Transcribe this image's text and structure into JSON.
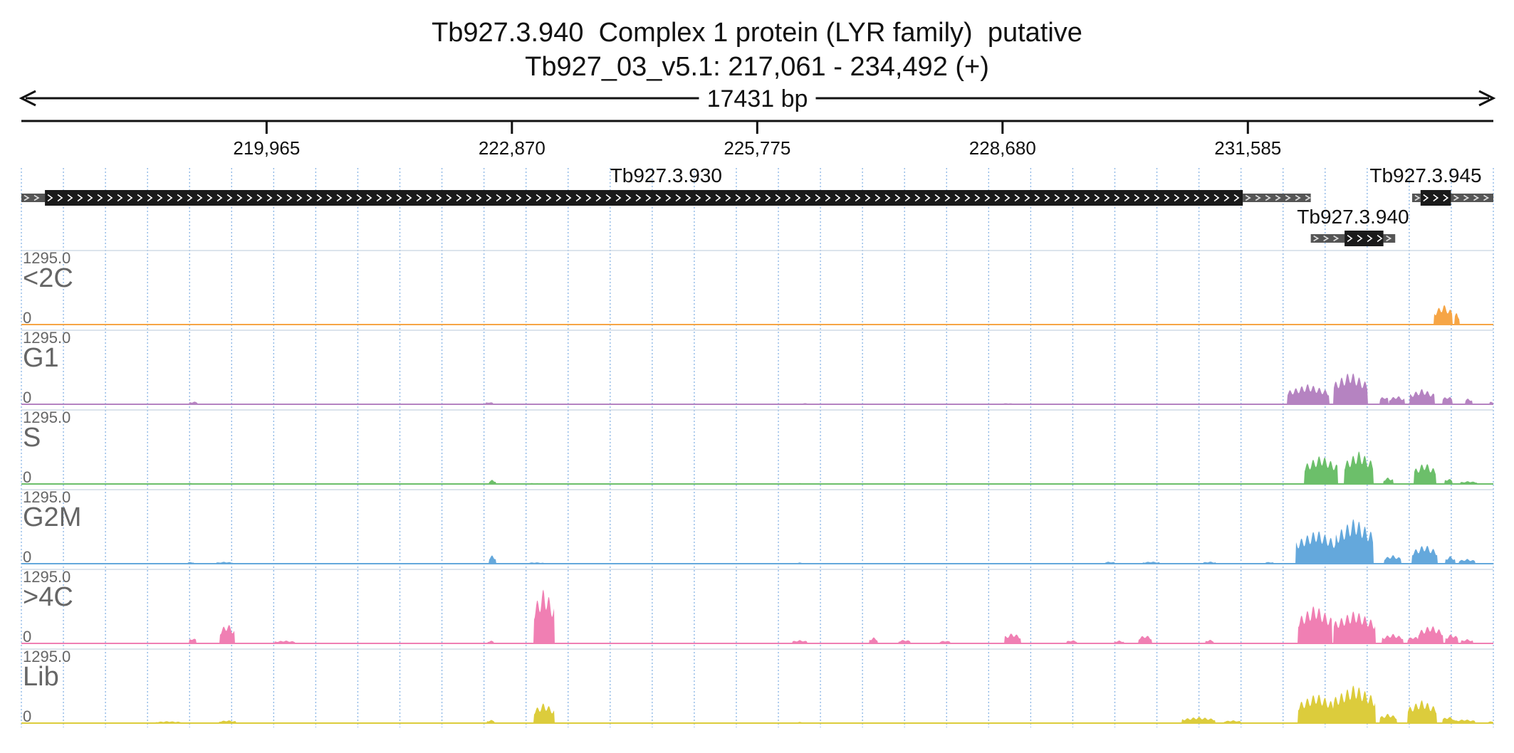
{
  "title": {
    "line1": "Tb927.3.940  Complex 1 protein (LYR family)  putative",
    "line2": "Tb927_03_v5.1: 217,061 - 234,492 (+)"
  },
  "span_label": "17431 bp",
  "chart_data": {
    "type": "area",
    "region": {
      "chromosome": "Tb927_03_v5.1",
      "start": 217061,
      "end": 234492,
      "strand": "+"
    },
    "axis": {
      "ticks": [
        219965,
        222870,
        225775,
        228680,
        231585
      ],
      "tick_labels": [
        "219,965",
        "222,870",
        "225,775",
        "228,680",
        "231,585"
      ]
    },
    "genes": [
      {
        "name": "Tb927.3.930",
        "utr5": [
          217061,
          217340
        ],
        "cds": [
          217340,
          231525
        ],
        "utr3": [
          231525,
          232330
        ]
      },
      {
        "name": "Tb927.3.940",
        "utr5": [
          232330,
          232730
        ],
        "cds": [
          232730,
          233190
        ],
        "utr3": [
          233190,
          233330
        ]
      },
      {
        "name": "Tb927.3.945",
        "utr5": [
          233530,
          233630
        ],
        "cds": [
          233630,
          233990
        ],
        "utr3": [
          233990,
          234492
        ]
      }
    ],
    "tracks": [
      {
        "name": "<2C",
        "max_label": "1295.0",
        "min_label": "0",
        "max": 1295,
        "color": "#f6a545",
        "peaks": [
          [
            233660,
            120,
            0
          ],
          [
            233900,
            220,
            420
          ],
          [
            233920,
            100,
            200
          ],
          [
            234060,
            60,
            260
          ]
        ]
      },
      {
        "name": "G1",
        "max_label": "1295.0",
        "min_label": "0",
        "max": 1295,
        "color": "#b583c1",
        "peaks": [
          [
            219100,
            100,
            60
          ],
          [
            222600,
            90,
            50
          ],
          [
            226330,
            100,
            25
          ],
          [
            228740,
            120,
            25
          ],
          [
            231180,
            80,
            18
          ],
          [
            232300,
            500,
            420
          ],
          [
            232800,
            400,
            680
          ],
          [
            233200,
            100,
            180
          ],
          [
            233350,
            180,
            180
          ],
          [
            233650,
            300,
            320
          ],
          [
            233950,
            120,
            180
          ],
          [
            234200,
            90,
            130
          ],
          [
            234470,
            50,
            60
          ]
        ]
      },
      {
        "name": "S",
        "max_label": "1295.0",
        "min_label": "0",
        "max": 1295,
        "color": "#6cbf6a",
        "peaks": [
          [
            219070,
            80,
            25
          ],
          [
            222640,
            80,
            90
          ],
          [
            223130,
            150,
            20
          ],
          [
            226280,
            80,
            18
          ],
          [
            229950,
            80,
            18
          ],
          [
            232450,
            400,
            600
          ],
          [
            232900,
            350,
            680
          ],
          [
            233250,
            120,
            140
          ],
          [
            233680,
            260,
            450
          ],
          [
            233960,
            90,
            120
          ],
          [
            234200,
            200,
            60
          ]
        ]
      },
      {
        "name": "G2M",
        "max_label": "1295.0",
        "min_label": "0",
        "max": 1295,
        "color": "#64a8dc",
        "peaks": [
          [
            219070,
            80,
            40
          ],
          [
            219470,
            200,
            40
          ],
          [
            222640,
            90,
            180
          ],
          [
            223150,
            200,
            30
          ],
          [
            226280,
            90,
            25
          ],
          [
            229950,
            120,
            45
          ],
          [
            230440,
            200,
            45
          ],
          [
            231130,
            150,
            45
          ],
          [
            231840,
            100,
            40
          ],
          [
            232400,
            500,
            700
          ],
          [
            232850,
            450,
            950
          ],
          [
            233300,
            200,
            180
          ],
          [
            233680,
            300,
            400
          ],
          [
            233980,
            120,
            160
          ],
          [
            234180,
            200,
            100
          ]
        ]
      },
      {
        "name": ">4C",
        "max_label": "1295.0",
        "min_label": "0",
        "max": 1295,
        "color": "#f07fb3",
        "peaks": [
          [
            219090,
            90,
            120
          ],
          [
            219500,
            180,
            420
          ],
          [
            220180,
            250,
            60
          ],
          [
            222620,
            80,
            60
          ],
          [
            223250,
            250,
            1150
          ],
          [
            226280,
            180,
            70
          ],
          [
            227150,
            100,
            130
          ],
          [
            227520,
            140,
            80
          ],
          [
            228000,
            130,
            60
          ],
          [
            228800,
            200,
            220
          ],
          [
            229500,
            120,
            70
          ],
          [
            230060,
            120,
            60
          ],
          [
            230370,
            160,
            180
          ],
          [
            231130,
            100,
            80
          ],
          [
            232380,
            400,
            800
          ],
          [
            232850,
            500,
            680
          ],
          [
            233300,
            250,
            200
          ],
          [
            233550,
            150,
            150
          ],
          [
            233750,
            300,
            380
          ],
          [
            234000,
            150,
            200
          ],
          [
            234180,
            150,
            90
          ]
        ]
      },
      {
        "name": "Lib",
        "max_label": "1295.0",
        "min_label": "0",
        "max": 1295,
        "color": "#dccc3c",
        "peaks": [
          [
            218800,
            300,
            40
          ],
          [
            219500,
            200,
            60
          ],
          [
            222620,
            90,
            70
          ],
          [
            223250,
            250,
            420
          ],
          [
            226280,
            90,
            25
          ],
          [
            231000,
            400,
            130
          ],
          [
            231400,
            200,
            60
          ],
          [
            232400,
            450,
            620
          ],
          [
            232850,
            500,
            800
          ],
          [
            233250,
            200,
            200
          ],
          [
            233650,
            350,
            480
          ],
          [
            233960,
            150,
            140
          ],
          [
            234150,
            250,
            80
          ],
          [
            234470,
            80,
            40
          ]
        ]
      }
    ]
  }
}
